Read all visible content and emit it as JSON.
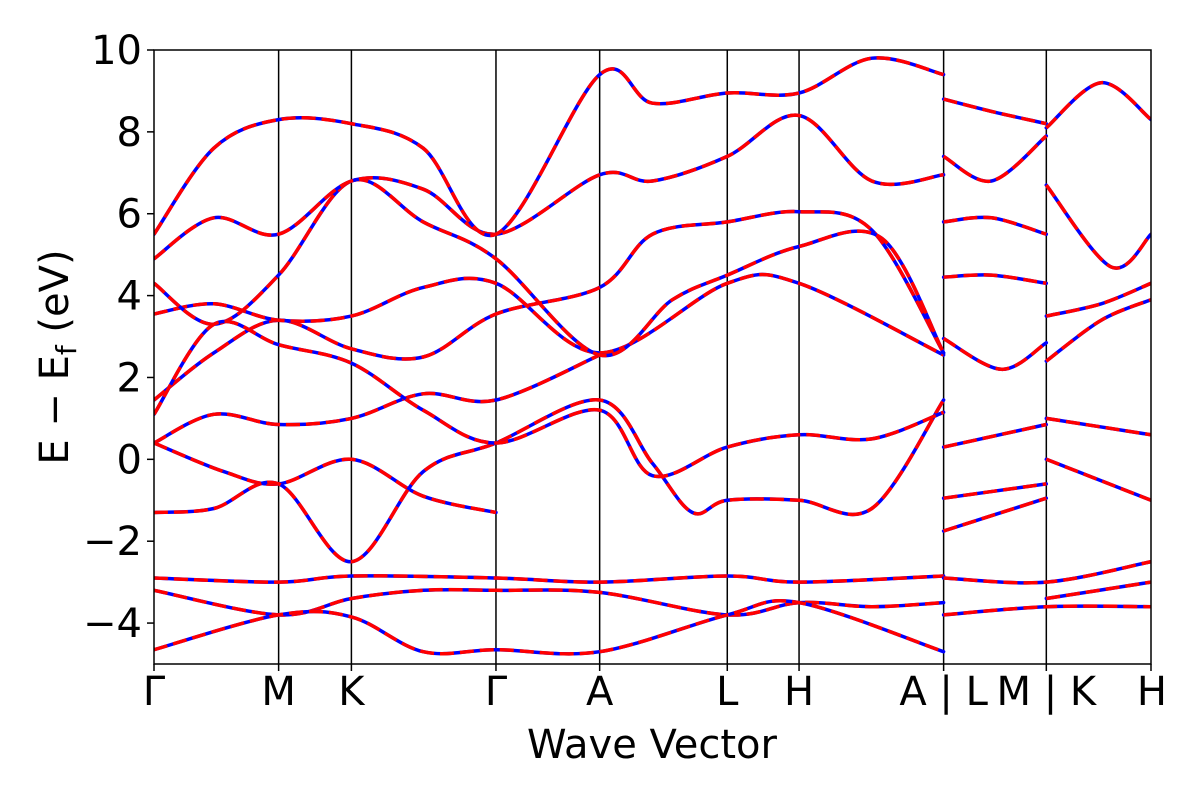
{
  "chart_data": {
    "type": "line",
    "title": "",
    "xlabel": "Wave Vector",
    "ylabel": "E − E",
    "ylabel_subscript": "f",
    "ylabel_unit": " (eV)",
    "ylim": [
      -5,
      10
    ],
    "yticks": [
      -4,
      -2,
      0,
      2,
      4,
      6,
      8,
      10
    ],
    "ytick_labels": [
      "−4",
      "−2",
      "0",
      "2",
      "4",
      "6",
      "8",
      "10"
    ],
    "xlim": [
      0,
      10
    ],
    "x_path_labels": [
      "Γ",
      "M",
      "K",
      "Γ",
      "A",
      "L",
      "H",
      "A | L",
      "M | K",
      "H"
    ],
    "x_path_positions": [
      0,
      1.25,
      1.98,
      3.43,
      4.47,
      5.75,
      6.47,
      7.92,
      8.95,
      10
    ],
    "grid": false,
    "line_colors": {
      "series_a": "#ff0000",
      "series_b": "#0000ff"
    },
    "line_style_overlay": "dashed",
    "series": [
      {
        "points": [
          [
            0,
            0.4
          ],
          [
            0.6,
            1.1
          ],
          [
            1.25,
            0.85
          ],
          [
            1.98,
            1.0
          ],
          [
            2.7,
            1.6
          ],
          [
            3.43,
            1.45
          ],
          [
            4.47,
            2.55
          ]
        ]
      },
      {
        "points": [
          [
            0,
            0.4
          ],
          [
            0.7,
            -0.3
          ],
          [
            1.25,
            -0.6
          ],
          [
            1.98,
            0.0
          ],
          [
            2.7,
            -0.9
          ],
          [
            3.43,
            -1.3
          ]
        ]
      },
      {
        "points": [
          [
            0,
            -1.3
          ],
          [
            0.6,
            -1.2
          ],
          [
            1.25,
            -0.6
          ],
          [
            1.98,
            -2.5
          ],
          [
            2.7,
            -0.3
          ],
          [
            3.43,
            0.4
          ],
          [
            4.47,
            1.45
          ],
          [
            5.0,
            -0.1
          ],
          [
            5.4,
            -1.3
          ],
          [
            5.75,
            -1.0
          ],
          [
            6.47,
            -1.0
          ],
          [
            7.2,
            -1.2
          ],
          [
            7.92,
            1.45
          ]
        ]
      },
      {
        "points": [
          [
            0,
            1.45
          ],
          [
            0.6,
            2.6
          ],
          [
            1.25,
            3.4
          ],
          [
            1.98,
            2.7
          ],
          [
            2.7,
            2.5
          ],
          [
            3.43,
            3.55
          ],
          [
            4.47,
            4.2
          ],
          [
            5.0,
            5.5
          ],
          [
            5.75,
            5.8
          ],
          [
            6.47,
            6.05
          ],
          [
            7.2,
            5.6
          ],
          [
            7.92,
            2.6
          ]
        ]
      },
      {
        "points": [
          [
            0,
            3.55
          ],
          [
            0.6,
            3.8
          ],
          [
            1.25,
            3.4
          ],
          [
            1.98,
            3.5
          ],
          [
            2.7,
            4.2
          ],
          [
            3.43,
            4.3
          ],
          [
            4.47,
            2.6
          ],
          [
            5.75,
            4.3
          ],
          [
            6.47,
            4.3
          ],
          [
            7.92,
            2.55
          ]
        ]
      },
      {
        "points": [
          [
            0,
            4.3
          ],
          [
            0.6,
            3.3
          ],
          [
            1.25,
            4.5
          ],
          [
            1.98,
            6.8
          ],
          [
            2.7,
            5.8
          ],
          [
            3.43,
            4.9
          ],
          [
            4.47,
            2.55
          ],
          [
            5.2,
            3.9
          ],
          [
            5.75,
            4.5
          ],
          [
            6.47,
            5.2
          ],
          [
            7.3,
            5.4
          ],
          [
            7.92,
            2.6
          ]
        ]
      },
      {
        "points": [
          [
            0,
            4.9
          ],
          [
            0.6,
            5.9
          ],
          [
            1.25,
            5.5
          ],
          [
            1.98,
            6.8
          ],
          [
            2.7,
            6.6
          ],
          [
            3.43,
            5.5
          ],
          [
            4.47,
            6.95
          ],
          [
            5.0,
            6.8
          ],
          [
            5.75,
            7.4
          ],
          [
            6.47,
            8.4
          ],
          [
            7.2,
            6.8
          ],
          [
            7.92,
            6.95
          ]
        ]
      },
      {
        "points": [
          [
            0,
            5.5
          ],
          [
            0.6,
            7.6
          ],
          [
            1.25,
            8.3
          ],
          [
            1.98,
            8.2
          ],
          [
            2.7,
            7.6
          ],
          [
            3.43,
            5.5
          ],
          [
            4.47,
            9.4
          ],
          [
            5.0,
            8.7
          ],
          [
            5.75,
            8.95
          ],
          [
            6.47,
            8.95
          ],
          [
            7.2,
            9.8
          ],
          [
            7.92,
            9.4
          ]
        ]
      },
      {
        "points": [
          [
            0,
            -2.9
          ],
          [
            1.25,
            -3.0
          ],
          [
            1.98,
            -2.85
          ],
          [
            3.43,
            -2.9
          ],
          [
            4.47,
            -3.0
          ],
          [
            5.75,
            -2.85
          ],
          [
            6.47,
            -3.0
          ],
          [
            7.92,
            -2.85
          ]
        ]
      },
      {
        "points": [
          [
            0,
            -3.2
          ],
          [
            1.25,
            -3.8
          ],
          [
            1.98,
            -3.4
          ],
          [
            2.7,
            -3.2
          ],
          [
            3.43,
            -3.2
          ],
          [
            4.47,
            -3.25
          ],
          [
            5.75,
            -3.8
          ],
          [
            6.47,
            -3.5
          ],
          [
            7.2,
            -3.6
          ],
          [
            7.92,
            -3.5
          ]
        ]
      },
      {
        "points": [
          [
            0,
            -4.65
          ],
          [
            1.25,
            -3.8
          ],
          [
            1.98,
            -3.85
          ],
          [
            2.7,
            -4.7
          ],
          [
            3.43,
            -4.65
          ],
          [
            4.47,
            -4.7
          ],
          [
            5.75,
            -3.8
          ],
          [
            6.47,
            -3.5
          ],
          [
            7.92,
            -4.7
          ]
        ]
      },
      {
        "points": [
          [
            0,
            1.1
          ],
          [
            0.6,
            3.3
          ],
          [
            1.25,
            2.8
          ],
          [
            1.98,
            2.35
          ],
          [
            2.7,
            1.2
          ],
          [
            3.43,
            0.4
          ],
          [
            4.47,
            1.2
          ],
          [
            5.0,
            -0.4
          ],
          [
            5.75,
            0.3
          ],
          [
            6.47,
            0.6
          ],
          [
            7.2,
            0.5
          ],
          [
            7.92,
            1.15
          ]
        ]
      },
      {
        "points": [
          [
            7.92,
            0.3
          ],
          [
            8.95,
            0.85
          ]
        ]
      },
      {
        "points": [
          [
            7.92,
            -0.95
          ],
          [
            8.95,
            -0.6
          ]
        ]
      },
      {
        "points": [
          [
            7.92,
            -1.75
          ],
          [
            8.95,
            -0.95
          ]
        ]
      },
      {
        "points": [
          [
            7.92,
            2.95
          ],
          [
            8.5,
            2.2
          ],
          [
            8.95,
            2.85
          ]
        ]
      },
      {
        "points": [
          [
            7.92,
            4.45
          ],
          [
            8.4,
            4.5
          ],
          [
            8.95,
            4.3
          ]
        ]
      },
      {
        "points": [
          [
            7.92,
            5.8
          ],
          [
            8.4,
            5.9
          ],
          [
            8.95,
            5.5
          ]
        ]
      },
      {
        "points": [
          [
            7.92,
            7.4
          ],
          [
            8.4,
            6.8
          ],
          [
            8.95,
            7.9
          ]
        ]
      },
      {
        "points": [
          [
            7.92,
            8.8
          ],
          [
            8.4,
            8.5
          ],
          [
            8.95,
            8.2
          ]
        ]
      },
      {
        "points": [
          [
            8.95,
            1.0
          ],
          [
            10,
            0.6
          ]
        ]
      },
      {
        "points": [
          [
            8.95,
            0.0
          ],
          [
            10,
            -1.0
          ]
        ]
      },
      {
        "points": [
          [
            8.95,
            2.4
          ],
          [
            9.5,
            3.4
          ],
          [
            10,
            3.9
          ]
        ]
      },
      {
        "points": [
          [
            8.95,
            3.5
          ],
          [
            9.5,
            3.8
          ],
          [
            10,
            4.3
          ]
        ]
      },
      {
        "points": [
          [
            8.95,
            6.7
          ],
          [
            9.6,
            4.7
          ],
          [
            10,
            5.5
          ]
        ]
      },
      {
        "points": [
          [
            8.95,
            8.1
          ],
          [
            9.5,
            9.2
          ],
          [
            10,
            8.3
          ]
        ]
      },
      {
        "points": [
          [
            7.92,
            -2.9
          ],
          [
            8.95,
            -3.0
          ],
          [
            10,
            -2.5
          ]
        ]
      },
      {
        "points": [
          [
            7.92,
            -3.8
          ],
          [
            8.95,
            -3.6
          ],
          [
            10,
            -3.6
          ]
        ]
      },
      {
        "points": [
          [
            8.95,
            -3.4
          ],
          [
            10,
            -3.0
          ]
        ]
      }
    ]
  }
}
